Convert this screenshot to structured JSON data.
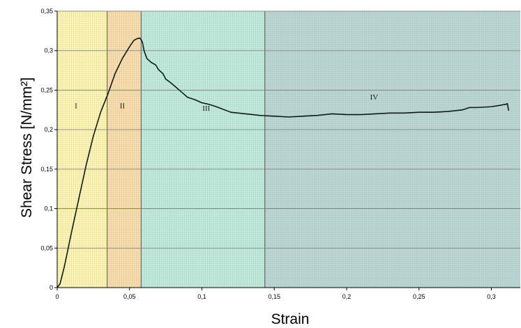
{
  "chart_data": {
    "type": "line",
    "title": "",
    "xlabel": "Strain",
    "ylabel": "Shear Stress [N/mm²]",
    "xlim": [
      0,
      0.32
    ],
    "ylim": [
      0,
      0.35
    ],
    "grid": "horizontal",
    "legend": "none",
    "xticks": [
      {
        "value": 0,
        "label": "0"
      },
      {
        "value": 0.05,
        "label": "0,05"
      },
      {
        "value": 0.1,
        "label": "0,1"
      },
      {
        "value": 0.15,
        "label": "0,15"
      },
      {
        "value": 0.2,
        "label": "0,2"
      },
      {
        "value": 0.25,
        "label": "0,25"
      },
      {
        "value": 0.3,
        "label": "0,3"
      }
    ],
    "yticks": [
      {
        "value": 0,
        "label": "0"
      },
      {
        "value": 0.05,
        "label": "0,05"
      },
      {
        "value": 0.1,
        "label": "0,1"
      },
      {
        "value": 0.15,
        "label": "0,15"
      },
      {
        "value": 0.2,
        "label": "0,2"
      },
      {
        "value": 0.25,
        "label": "0,25"
      },
      {
        "value": 0.3,
        "label": "0,3"
      },
      {
        "value": 0.35,
        "label": "0,35"
      }
    ],
    "regions": [
      {
        "label": "I",
        "x0": 0,
        "x1": 0.0345,
        "color": "#fdf6b5",
        "label_x": 0.013,
        "label_y": 0.227
      },
      {
        "label": "II",
        "x0": 0.0345,
        "x1": 0.058,
        "color": "#f9dfae",
        "label_x": 0.045,
        "label_y": 0.227
      },
      {
        "label": "III",
        "x0": 0.058,
        "x1": 0.1435,
        "color": "#c2ecdd",
        "label_x": 0.103,
        "label_y": 0.224
      },
      {
        "label": "IV",
        "x0": 0.1435,
        "x1": 0.32,
        "color": "#bcd9d6",
        "label_x": 0.219,
        "label_y": 0.238
      }
    ],
    "series": [
      {
        "color": "#0d1a1a",
        "x": [
          0,
          0.002,
          0.005,
          0.01,
          0.015,
          0.02,
          0.025,
          0.03,
          0.035,
          0.04,
          0.045,
          0.05,
          0.053,
          0.055,
          0.057,
          0.058,
          0.059,
          0.06,
          0.062,
          0.065,
          0.068,
          0.07,
          0.073,
          0.075,
          0.078,
          0.08,
          0.085,
          0.09,
          0.095,
          0.1,
          0.105,
          0.11,
          0.12,
          0.13,
          0.14,
          0.15,
          0.16,
          0.17,
          0.18,
          0.19,
          0.2,
          0.21,
          0.22,
          0.23,
          0.24,
          0.25,
          0.26,
          0.27,
          0.275,
          0.28,
          0.285,
          0.29,
          0.3,
          0.31,
          0.311,
          0.312
        ],
        "y": [
          0,
          0.005,
          0.027,
          0.071,
          0.113,
          0.155,
          0.192,
          0.222,
          0.245,
          0.271,
          0.29,
          0.305,
          0.313,
          0.315,
          0.316,
          0.314,
          0.31,
          0.3,
          0.29,
          0.285,
          0.282,
          0.276,
          0.271,
          0.264,
          0.26,
          0.257,
          0.249,
          0.241,
          0.238,
          0.234,
          0.232,
          0.229,
          0.222,
          0.22,
          0.218,
          0.217,
          0.216,
          0.217,
          0.218,
          0.22,
          0.219,
          0.219,
          0.22,
          0.221,
          0.221,
          0.222,
          0.222,
          0.223,
          0.224,
          0.225,
          0.228,
          0.228,
          0.229,
          0.232,
          0.233,
          0.224
        ]
      }
    ]
  }
}
